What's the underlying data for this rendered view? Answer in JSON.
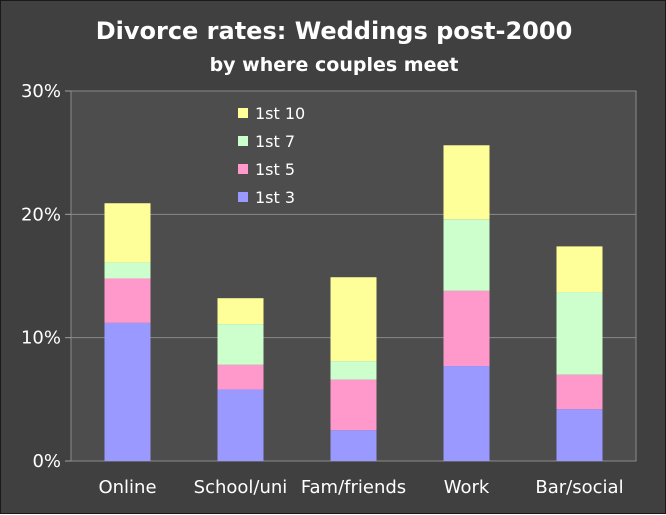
{
  "chart_data": {
    "type": "bar",
    "stacked": true,
    "title": "Divorce rates: Weddings post-2000",
    "subtitle": "by where couples meet",
    "xlabel": "",
    "ylabel": "",
    "ylim": [
      0,
      30
    ],
    "yticks": [
      "0%",
      "10%",
      "20%",
      "30%"
    ],
    "grid": true,
    "legend_position": "top-left inside plot",
    "categories": [
      "Online",
      "School/uni",
      "Fam/friends",
      "Work",
      "Bar/social"
    ],
    "series": [
      {
        "name": "1st 3",
        "color": "#9999ff",
        "values": [
          11.2,
          5.8,
          2.5,
          7.7,
          4.2
        ]
      },
      {
        "name": "1st 5",
        "color": "#ff99cc",
        "values": [
          3.6,
          2.0,
          4.1,
          6.1,
          2.8
        ]
      },
      {
        "name": "1st 7",
        "color": "#ccffcc",
        "values": [
          1.3,
          3.3,
          1.5,
          5.8,
          6.7
        ]
      },
      {
        "name": "1st 10",
        "color": "#ffff99",
        "values": [
          4.8,
          2.1,
          6.8,
          6.0,
          3.7
        ]
      }
    ]
  }
}
